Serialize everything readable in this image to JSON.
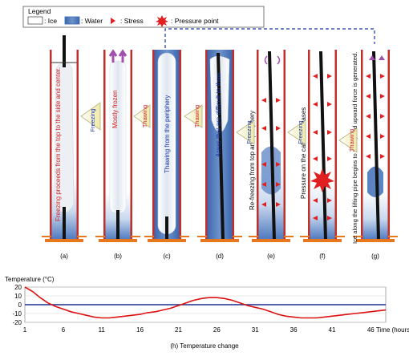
{
  "legend": {
    "title": "Legend",
    "items": [
      {
        "key": "ice",
        "label": ": Ice"
      },
      {
        "key": "water",
        "label": ": Water"
      },
      {
        "key": "stress",
        "label": ": Stress"
      },
      {
        "key": "pressure",
        "label": ": Pressure point"
      }
    ]
  },
  "colors": {
    "ice": "#ffffff",
    "water": "#3f6fb8",
    "stress": "#e02020",
    "pipe_wall": "#c0302a",
    "ground": "#e8781e",
    "arrow_fill": "#f7f3c9",
    "blue_text": "#1a3aa8",
    "red_text": "#d42020",
    "temp_line": "#dd1111",
    "zero_line": "#1b2f8f"
  },
  "columns": [
    {
      "id": "a",
      "label": "(a)",
      "text": "Freezing proceeds from the top to the side and center."
    },
    {
      "id": "b",
      "label": "(b)",
      "text": "Mostly frozen"
    },
    {
      "id": "c",
      "label": "(c)",
      "text": "Thawing from the periphery"
    },
    {
      "id": "d",
      "label": "(d)",
      "text": "Areas that are difficult to thaw"
    },
    {
      "id": "e",
      "label": "(e)",
      "text": "Re-freezing from top and periphery"
    },
    {
      "id": "f",
      "label": "(f)",
      "text": "Pressure on the cable increases"
    },
    {
      "id": "g",
      "label": "(g)",
      "text": "Ice along the lifting pipe begins to thaw, and upward force is generated."
    }
  ],
  "transitions": [
    {
      "text": "Freezing"
    },
    {
      "text": "Thawing"
    },
    {
      "text": "Thawing"
    },
    {
      "text": "Freezing"
    },
    {
      "text": "Freezing"
    },
    {
      "text": "Thawing"
    }
  ],
  "chart_data": {
    "type": "line",
    "title": "(h) Temperature change",
    "ylabel": "Temperature (°C)",
    "xlabel": "Time (hours)",
    "ylim": [
      -20,
      20
    ],
    "xlim": [
      1,
      48
    ],
    "yticks": [
      20,
      10,
      0,
      -10,
      -20
    ],
    "xticks": [
      1,
      6,
      11,
      16,
      21,
      26,
      31,
      36,
      41,
      46
    ],
    "x_last_tick_label": "46 Time (hours)",
    "grid": true,
    "series": [
      {
        "x": [
          1,
          2,
          3,
          4,
          5,
          6,
          7,
          8,
          9,
          10,
          11,
          12,
          13,
          14,
          15,
          16,
          17,
          18,
          19,
          20,
          21,
          22,
          23,
          24,
          25,
          26,
          27,
          28,
          29,
          30,
          31,
          32,
          33,
          34,
          35,
          36,
          37,
          38,
          39,
          40,
          41,
          42,
          43,
          44,
          45,
          46,
          47,
          48
        ],
        "values": [
          20,
          15,
          8,
          2,
          -2,
          -5,
          -8,
          -10,
          -12,
          -14,
          -15,
          -15,
          -14,
          -13,
          -12,
          -11,
          -9,
          -8,
          -6,
          -4,
          -1,
          2,
          5,
          7,
          8,
          8,
          7,
          5,
          2,
          -1,
          -3,
          -5,
          -8,
          -11,
          -13,
          -14,
          -15,
          -15,
          -15,
          -14,
          -13,
          -12,
          -11,
          -10,
          -9,
          -8,
          -7,
          -6
        ]
      }
    ]
  }
}
